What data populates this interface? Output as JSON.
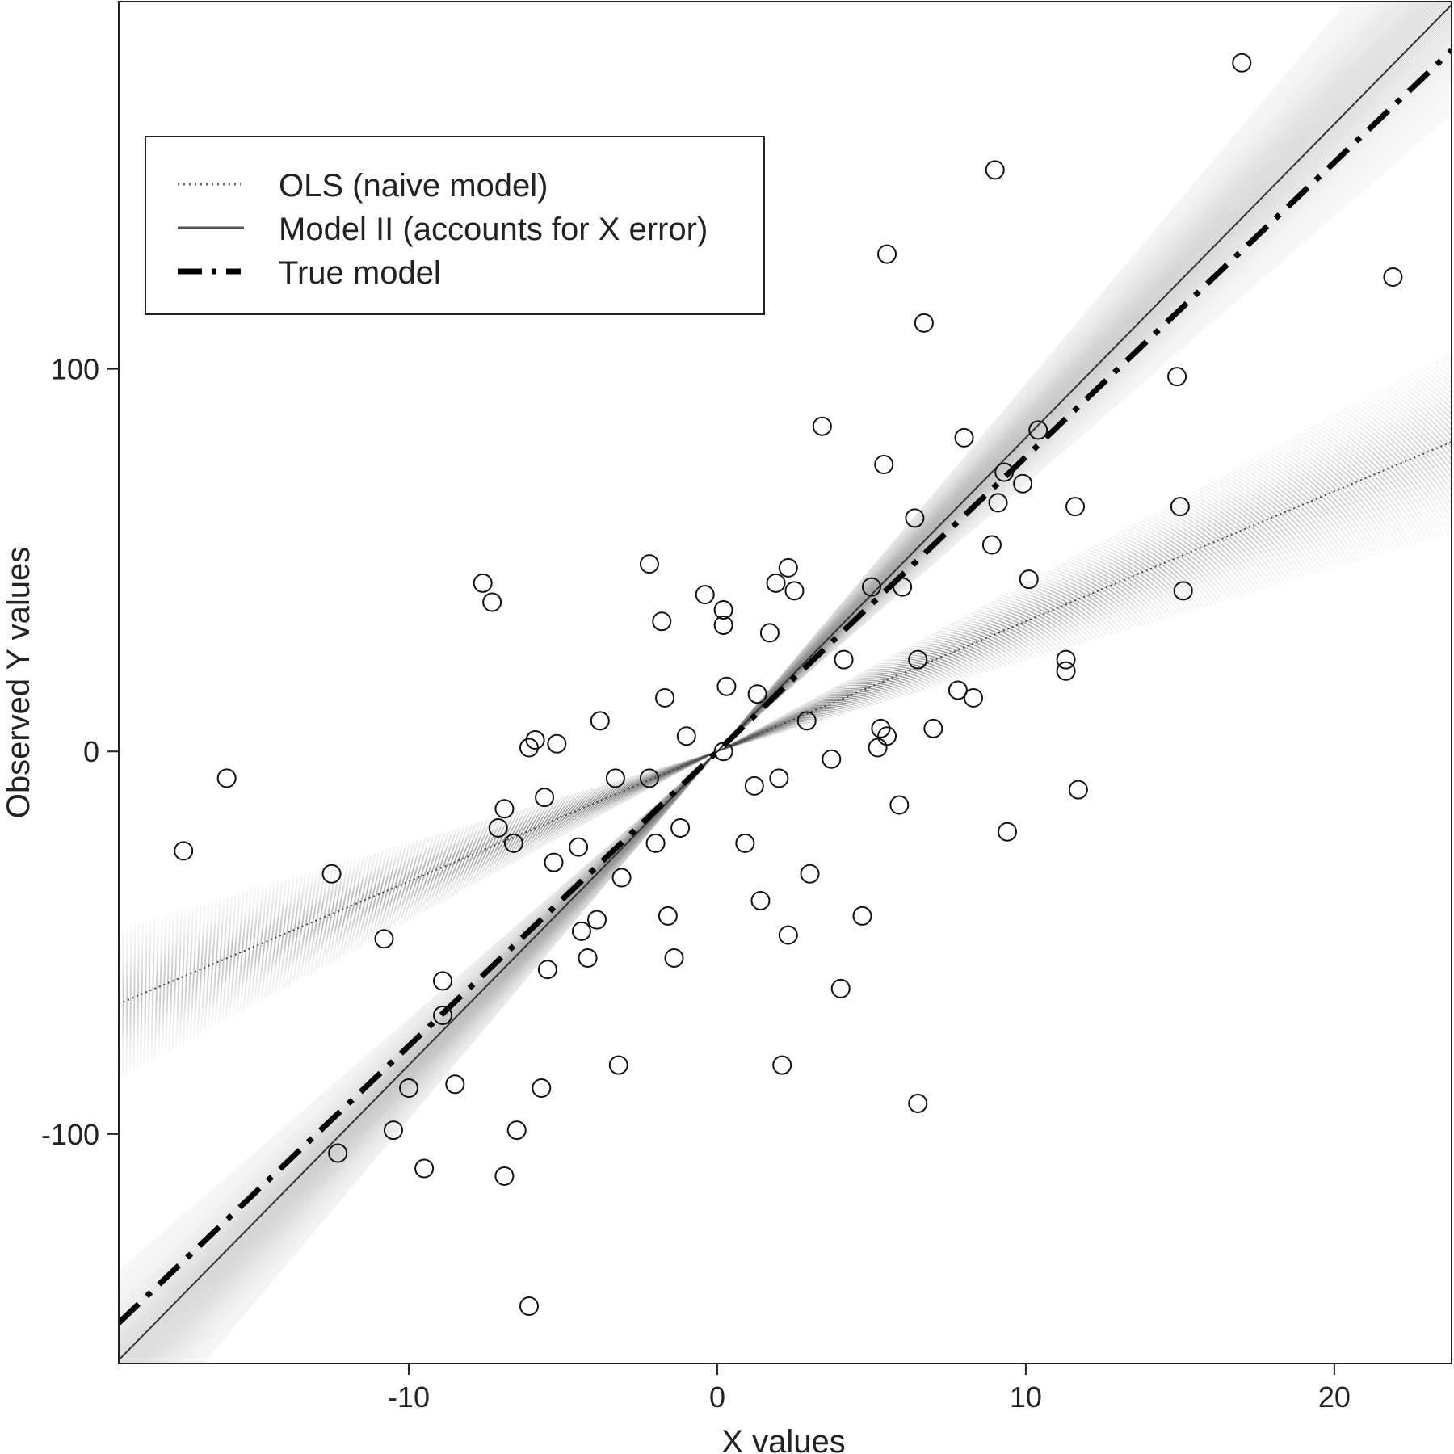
{
  "chart_data": {
    "type": "scatter",
    "title": "",
    "xlabel": "X values",
    "ylabel": "Observed Y values",
    "xlim": [
      -19.4,
      23.8
    ],
    "ylim": [
      -160,
      196
    ],
    "xticks": [
      -10,
      0,
      10,
      20
    ],
    "yticks": [
      -100,
      0,
      100
    ],
    "grid": false,
    "legend": {
      "placement": "top-left",
      "entries": [
        {
          "label": "OLS (naive model)",
          "style": "dotted"
        },
        {
          "label": "Model II (accounts for X error)",
          "style": "solid"
        },
        {
          "label": "True model",
          "style": "dashdot"
        }
      ]
    },
    "lines": {
      "ols": {
        "name": "OLS (naive model)",
        "intercept": 0,
        "slope": 3.4,
        "slope_spread": [
          2.4,
          4.4
        ],
        "color": "#555555"
      },
      "model2": {
        "name": "Model II (accounts for X error)",
        "intercept": 0,
        "slope": 8.2,
        "slope_spread": [
          7.0,
          9.6
        ],
        "color": "#777777"
      },
      "true": {
        "name": "True model",
        "intercept": 0,
        "slope": 7.7,
        "color": "#000000"
      }
    },
    "points": [
      {
        "x": -17.3,
        "y": -26
      },
      {
        "x": -15.9,
        "y": -7
      },
      {
        "x": -12.5,
        "y": -32
      },
      {
        "x": -12.3,
        "y": -105
      },
      {
        "x": -10.8,
        "y": -49
      },
      {
        "x": -10.5,
        "y": -99
      },
      {
        "x": -10.0,
        "y": -88
      },
      {
        "x": -9.5,
        "y": -109
      },
      {
        "x": -8.9,
        "y": -60
      },
      {
        "x": -8.9,
        "y": -69
      },
      {
        "x": -8.5,
        "y": -87
      },
      {
        "x": -7.6,
        "y": 44
      },
      {
        "x": -7.3,
        "y": 39
      },
      {
        "x": -7.1,
        "y": -20
      },
      {
        "x": -6.9,
        "y": -15
      },
      {
        "x": -6.9,
        "y": -111
      },
      {
        "x": -6.6,
        "y": -24
      },
      {
        "x": -6.5,
        "y": -99
      },
      {
        "x": -6.1,
        "y": 1
      },
      {
        "x": -6.1,
        "y": -145
      },
      {
        "x": -5.9,
        "y": 3
      },
      {
        "x": -5.7,
        "y": -88
      },
      {
        "x": -5.6,
        "y": -12
      },
      {
        "x": -5.5,
        "y": -57
      },
      {
        "x": -5.3,
        "y": -29
      },
      {
        "x": -5.2,
        "y": 2
      },
      {
        "x": -4.5,
        "y": -25
      },
      {
        "x": -4.4,
        "y": -47
      },
      {
        "x": -4.2,
        "y": -54
      },
      {
        "x": -3.9,
        "y": -44
      },
      {
        "x": -3.8,
        "y": 8
      },
      {
        "x": -3.3,
        "y": -7
      },
      {
        "x": -3.2,
        "y": -82
      },
      {
        "x": -3.1,
        "y": -33
      },
      {
        "x": -2.2,
        "y": 49
      },
      {
        "x": -2.2,
        "y": -7
      },
      {
        "x": -2.0,
        "y": -24
      },
      {
        "x": -1.8,
        "y": 34
      },
      {
        "x": -1.7,
        "y": 14
      },
      {
        "x": -1.6,
        "y": -43
      },
      {
        "x": -1.4,
        "y": -54
      },
      {
        "x": -1.2,
        "y": -20
      },
      {
        "x": -1.0,
        "y": 4
      },
      {
        "x": -0.4,
        "y": 41
      },
      {
        "x": 0.2,
        "y": 37
      },
      {
        "x": 0.2,
        "y": 33
      },
      {
        "x": 0.2,
        "y": 0
      },
      {
        "x": 0.3,
        "y": 17
      },
      {
        "x": 0.9,
        "y": -24
      },
      {
        "x": 1.2,
        "y": -9
      },
      {
        "x": 1.3,
        "y": 15
      },
      {
        "x": 1.4,
        "y": -39
      },
      {
        "x": 1.7,
        "y": 31
      },
      {
        "x": 1.9,
        "y": 44
      },
      {
        "x": 2.0,
        "y": -7
      },
      {
        "x": 2.1,
        "y": -82
      },
      {
        "x": 2.3,
        "y": 48
      },
      {
        "x": 2.3,
        "y": -48
      },
      {
        "x": 2.5,
        "y": 42
      },
      {
        "x": 2.9,
        "y": 8
      },
      {
        "x": 3.0,
        "y": -32
      },
      {
        "x": 3.4,
        "y": 85
      },
      {
        "x": 3.7,
        "y": -2
      },
      {
        "x": 4.0,
        "y": -62
      },
      {
        "x": 4.1,
        "y": 24
      },
      {
        "x": 4.7,
        "y": -43
      },
      {
        "x": 5.0,
        "y": 43
      },
      {
        "x": 5.2,
        "y": 1
      },
      {
        "x": 5.3,
        "y": 6
      },
      {
        "x": 5.4,
        "y": 75
      },
      {
        "x": 5.5,
        "y": 4
      },
      {
        "x": 5.5,
        "y": 130
      },
      {
        "x": 5.9,
        "y": -14
      },
      {
        "x": 6.0,
        "y": 43
      },
      {
        "x": 6.4,
        "y": 61
      },
      {
        "x": 6.5,
        "y": 24
      },
      {
        "x": 6.5,
        "y": -92
      },
      {
        "x": 6.7,
        "y": 112
      },
      {
        "x": 7.0,
        "y": 6
      },
      {
        "x": 7.8,
        "y": 16
      },
      {
        "x": 8.0,
        "y": 82
      },
      {
        "x": 8.3,
        "y": 14
      },
      {
        "x": 8.9,
        "y": 54
      },
      {
        "x": 9.0,
        "y": 152
      },
      {
        "x": 9.1,
        "y": 65
      },
      {
        "x": 9.3,
        "y": 73
      },
      {
        "x": 9.4,
        "y": -21
      },
      {
        "x": 9.9,
        "y": 70
      },
      {
        "x": 10.1,
        "y": 45
      },
      {
        "x": 10.4,
        "y": 84
      },
      {
        "x": 11.3,
        "y": 24
      },
      {
        "x": 11.3,
        "y": 21
      },
      {
        "x": 11.6,
        "y": 64
      },
      {
        "x": 11.7,
        "y": -10
      },
      {
        "x": 14.9,
        "y": 98
      },
      {
        "x": 15.0,
        "y": 64
      },
      {
        "x": 15.1,
        "y": 42
      },
      {
        "x": 17.0,
        "y": 180
      },
      {
        "x": 21.9,
        "y": 124
      }
    ]
  }
}
